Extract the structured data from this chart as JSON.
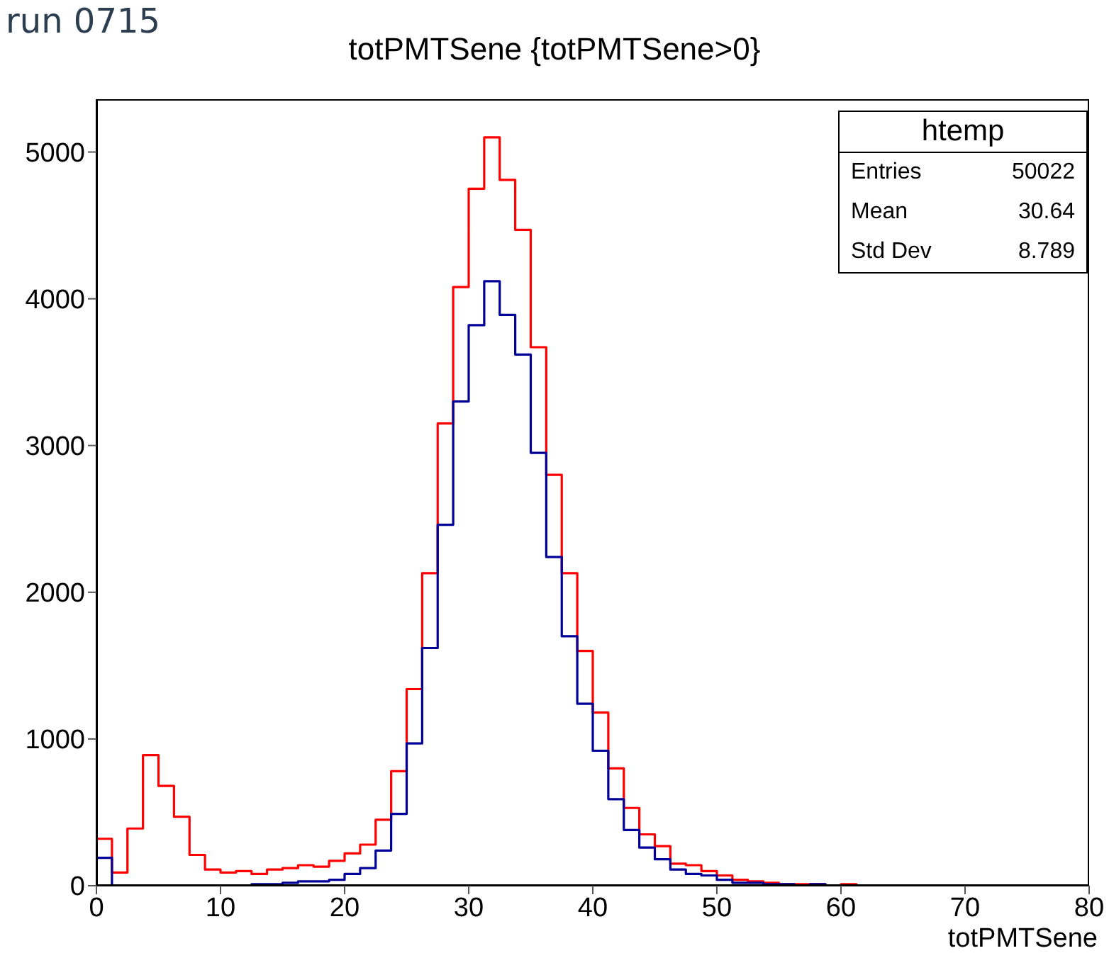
{
  "chart_data": {
    "type": "histogram",
    "title": "totPMTSene {totPMTSene>0}",
    "xlabel": "totPMTSene",
    "annotations": [
      "run 0715",
      "htemp",
      "Entries",
      "50022",
      "Mean",
      "30.64",
      "Std Dev",
      "8.789"
    ],
    "bins": [
      0,
      1.25,
      2.5,
      3.75,
      5,
      6.25,
      7.5,
      8.75,
      10,
      11.25,
      12.5,
      13.75,
      15,
      16.25,
      17.5,
      18.75,
      20,
      21.25,
      22.5,
      23.75,
      25,
      26.25,
      27.5,
      28.75,
      30,
      31.25,
      32.5,
      33.75,
      35,
      36.25,
      37.5,
      38.75,
      40,
      41.25,
      42.5,
      43.75,
      45,
      46.25,
      47.5,
      48.75,
      50,
      51.25,
      52.5,
      53.75,
      55,
      56.25,
      57.5,
      58.75,
      60,
      61.25,
      62.5,
      63.75,
      65,
      66.25,
      67.5,
      68.75,
      70,
      71.25,
      72.5,
      73.75,
      75,
      76.25,
      77.5,
      78.75,
      80
    ],
    "series": [
      {
        "color": "#ff0000",
        "values": [
          320,
          90,
          390,
          890,
          680,
          470,
          210,
          110,
          90,
          100,
          80,
          110,
          120,
          140,
          130,
          170,
          220,
          280,
          450,
          780,
          1340,
          2130,
          3150,
          4080,
          4750,
          5100,
          4810,
          4470,
          3670,
          2800,
          2130,
          1600,
          1180,
          800,
          530,
          350,
          270,
          150,
          140,
          100,
          70,
          40,
          30,
          20,
          10,
          10,
          10,
          0,
          10,
          0,
          0,
          0,
          0,
          0,
          0,
          0,
          0,
          0,
          0,
          0,
          0,
          0,
          0,
          0
        ]
      },
      {
        "color": "#000099",
        "values": [
          190,
          0,
          0,
          0,
          0,
          0,
          0,
          0,
          0,
          0,
          10,
          10,
          20,
          30,
          30,
          40,
          80,
          120,
          240,
          490,
          970,
          1620,
          2460,
          3300,
          3820,
          4120,
          3890,
          3620,
          2950,
          2240,
          1700,
          1240,
          920,
          590,
          380,
          260,
          180,
          110,
          80,
          70,
          40,
          20,
          20,
          10,
          10,
          0,
          10,
          0,
          0,
          0,
          0,
          0,
          0,
          0,
          0,
          0,
          0,
          0,
          0,
          0,
          0,
          0,
          0,
          0
        ]
      }
    ],
    "xlim": [
      0,
      80
    ],
    "xticks": [
      0,
      10,
      20,
      30,
      40,
      50,
      60,
      70,
      80
    ],
    "ylim": [
      0,
      5360
    ],
    "yticks": [
      0,
      1000,
      2000,
      3000,
      4000,
      5000
    ],
    "grid": false,
    "legend": false
  }
}
